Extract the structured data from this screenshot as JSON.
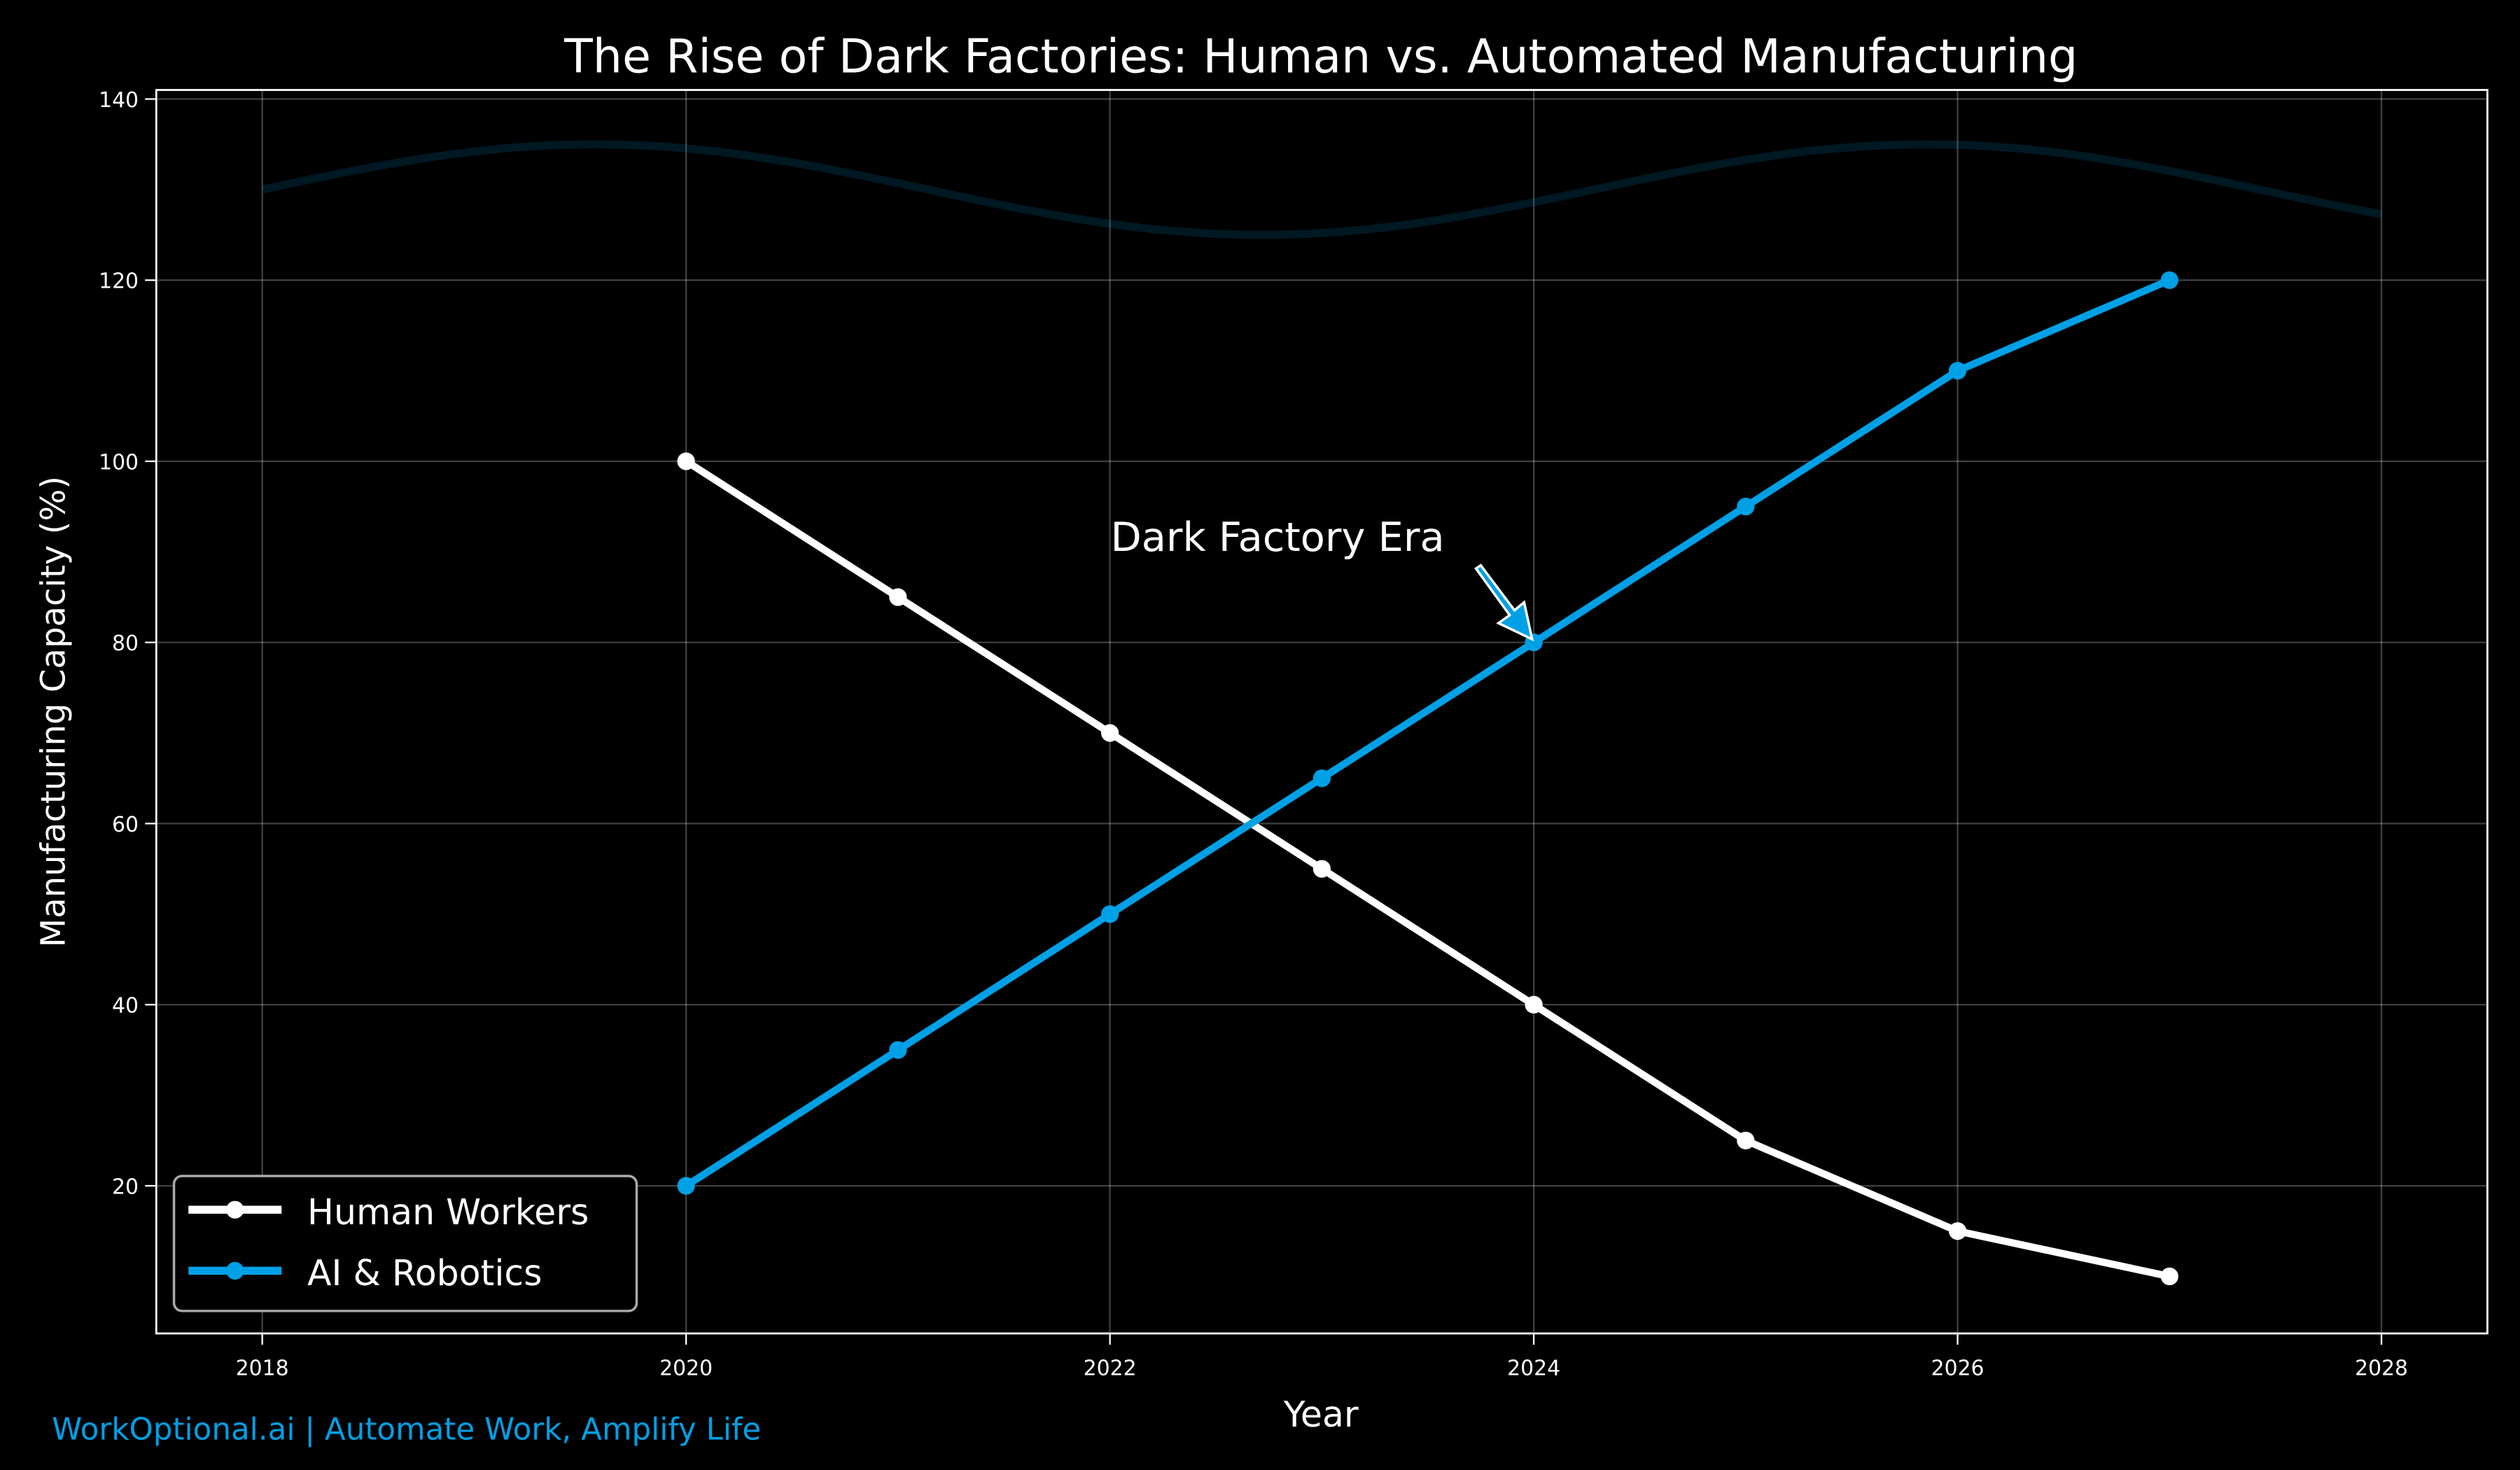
{
  "chart_data": {
    "type": "line",
    "title": "The Rise of Dark Factories: Human vs. Automated Manufacturing",
    "xlabel": "Year",
    "ylabel": "Manufacturing Capacity (%)",
    "xlim": [
      2017.5,
      2028.5
    ],
    "ylim": [
      3.7,
      141
    ],
    "xticks": [
      2018,
      2020,
      2022,
      2024,
      2026,
      2028
    ],
    "yticks": [
      20,
      40,
      60,
      80,
      100,
      120,
      140
    ],
    "grid": true,
    "legend_position": "lower-left",
    "series": [
      {
        "name": "Human Workers",
        "color": "#ffffff",
        "x": [
          2020,
          2021,
          2022,
          2023,
          2024,
          2025,
          2026,
          2027
        ],
        "y": [
          100,
          85,
          70,
          55,
          40,
          25,
          15,
          10
        ]
      },
      {
        "name": "AI & Robotics",
        "color": "#00a0e6",
        "x": [
          2020,
          2021,
          2022,
          2023,
          2024,
          2025,
          2026,
          2027
        ],
        "y": [
          20,
          35,
          50,
          65,
          80,
          95,
          110,
          120
        ]
      }
    ],
    "background_wave": {
      "color": "#00a0e6",
      "opacity": 0.15,
      "formula": "130 + 5*sin(x-2018)",
      "x_range": [
        2018,
        2028
      ]
    },
    "annotation": {
      "text": "Dark Factory Era",
      "xy": [
        2024,
        80
      ],
      "text_xy": [
        2022,
        90
      ]
    }
  },
  "footer": "WorkOptional.ai | Automate Work, Amplify Life"
}
